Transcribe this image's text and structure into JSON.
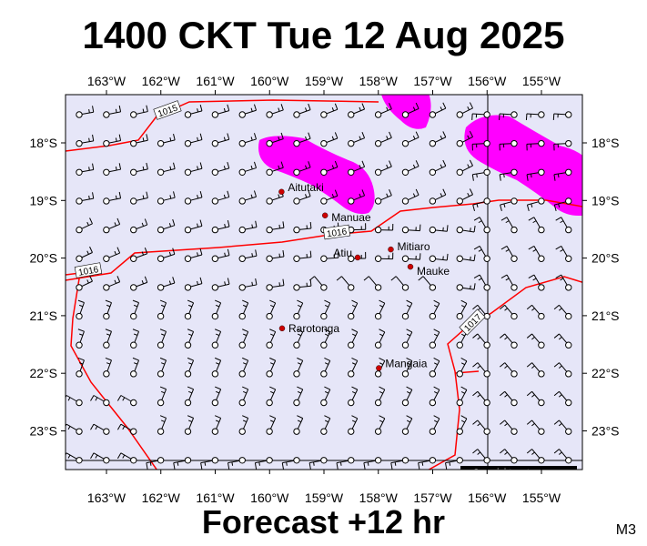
{
  "title": "1400 CKT Tue 12 Aug 2025",
  "footer": "Forecast +12 hr",
  "badge": "M3",
  "copyright": "Copyright metvuw.com",
  "colors": {
    "background": "#e6e6f8",
    "precip": "#ff00ff",
    "isobar": "#ff0000",
    "island": "#cc0000"
  },
  "lon_ticks": [
    "163°W",
    "162°W",
    "161°W",
    "160°W",
    "159°W",
    "158°W",
    "157°W",
    "156°W",
    "155°W"
  ],
  "lat_ticks": [
    "18°S",
    "19°S",
    "20°S",
    "21°S",
    "22°S",
    "23°S"
  ],
  "isobars": [
    "1015",
    "1016",
    "1016",
    "1017"
  ],
  "islands": [
    {
      "name": "Aitutaki",
      "lon": -159.78,
      "lat": -18.85
    },
    {
      "name": "Manuae",
      "lon": -158.98,
      "lat": -19.26
    },
    {
      "name": "Atiu",
      "lon": -158.38,
      "lat": -19.99
    },
    {
      "name": "Mitiaro",
      "lon": -157.77,
      "lat": -19.85
    },
    {
      "name": "Mauke",
      "lon": -157.41,
      "lat": -20.15
    },
    {
      "name": "Rarotonga",
      "lon": -159.77,
      "lat": -21.22
    },
    {
      "name": "Mangaia",
      "lon": -157.99,
      "lat": -21.91
    }
  ]
}
